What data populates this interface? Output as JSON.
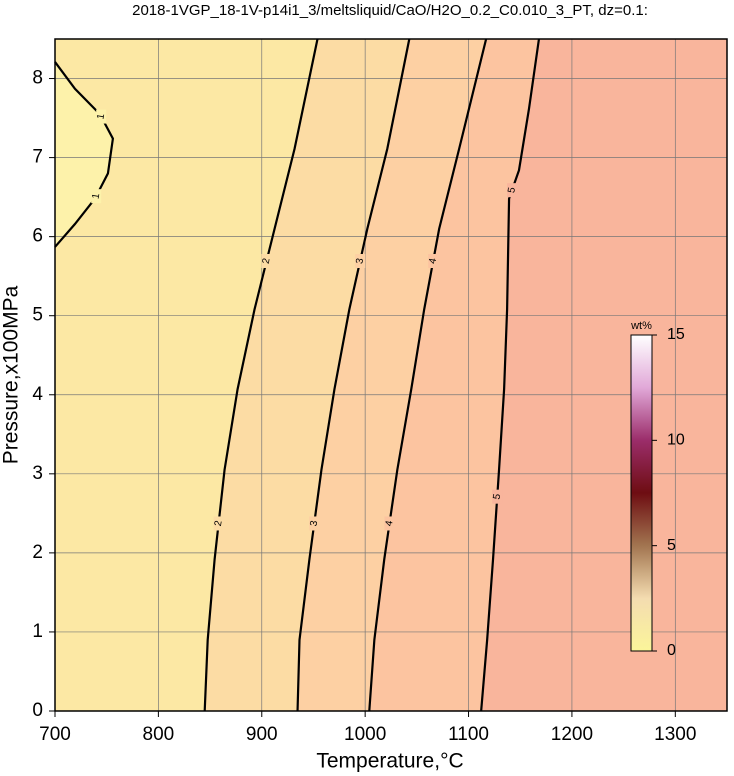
{
  "chart_data": {
    "type": "contour",
    "title": "2018-1VGP_18-1V-p14i1_3/meltsliquid/CaO/H2O_0.2_C0.010_3_PT, dz=0.1:",
    "x_label": "Temperature,°C",
    "y_label": "Pressure,x100MPa",
    "xlim": [
      700,
      1350
    ],
    "xticks": [
      700,
      800,
      900,
      1000,
      1100,
      1200,
      1300
    ],
    "ylim": [
      0,
      8.5
    ],
    "yticks": [
      0,
      1,
      2,
      3,
      4,
      5,
      6,
      7,
      8
    ],
    "grid": true,
    "background": "#fce8a4",
    "contours": [
      {
        "level": 1,
        "color": "#fdf2aa",
        "x": [
          700,
          719.3,
          743.4,
          756,
          751.2,
          738.6,
          719.3,
          700
        ],
        "y": [
          8.21,
          7.87,
          7.55,
          7.24,
          6.8,
          6.48,
          6.16,
          5.87
        ]
      },
      {
        "level": 2,
        "color": "#fcdca4",
        "x": [
          844.8,
          847.7,
          854.4,
          864,
          876.6,
          893,
          912.4,
          931.7,
          953.9
        ],
        "y": [
          0,
          0.9,
          1.92,
          3.05,
          4.07,
          5.08,
          6.1,
          7.11,
          8.5
        ]
      },
      {
        "level": 3,
        "color": "#fdd0a3",
        "x": [
          934.6,
          936.5,
          946.1,
          957.7,
          970.3,
          984.7,
          1002.1,
          1021.4,
          1042.7
        ],
        "y": [
          0,
          0.9,
          1.92,
          3.05,
          4.07,
          5.08,
          6.1,
          7.11,
          8.5
        ]
      },
      {
        "level": 4,
        "color": "#fcc4a0",
        "x": [
          1004,
          1008.9,
          1018.5,
          1031.1,
          1044.6,
          1057.1,
          1071.6,
          1090.9,
          1117
        ],
        "y": [
          0,
          0.9,
          1.92,
          3.05,
          4.07,
          5.08,
          6.1,
          7.11,
          8.5
        ]
      },
      {
        "level": 5,
        "color": "#f9b59c",
        "x": [
          1112.2,
          1118,
          1123.7,
          1129.5,
          1134.4,
          1137.3,
          1139.2,
          1148.8,
          1158.5,
          1168.1
        ],
        "y": [
          0,
          0.9,
          1.92,
          3.05,
          4.07,
          5.08,
          6.48,
          6.84,
          7.62,
          8.5
        ]
      }
    ],
    "colorbar": {
      "label": "wt%",
      "lim": [
        0,
        15
      ],
      "ticks": [
        0,
        5,
        10,
        15
      ],
      "colors": [
        "#fbf59a",
        "#f4dcb0",
        "#a27550",
        "#6e0d12",
        "#9b2d6a",
        "#e1a8d8",
        "#ffffff"
      ]
    }
  }
}
